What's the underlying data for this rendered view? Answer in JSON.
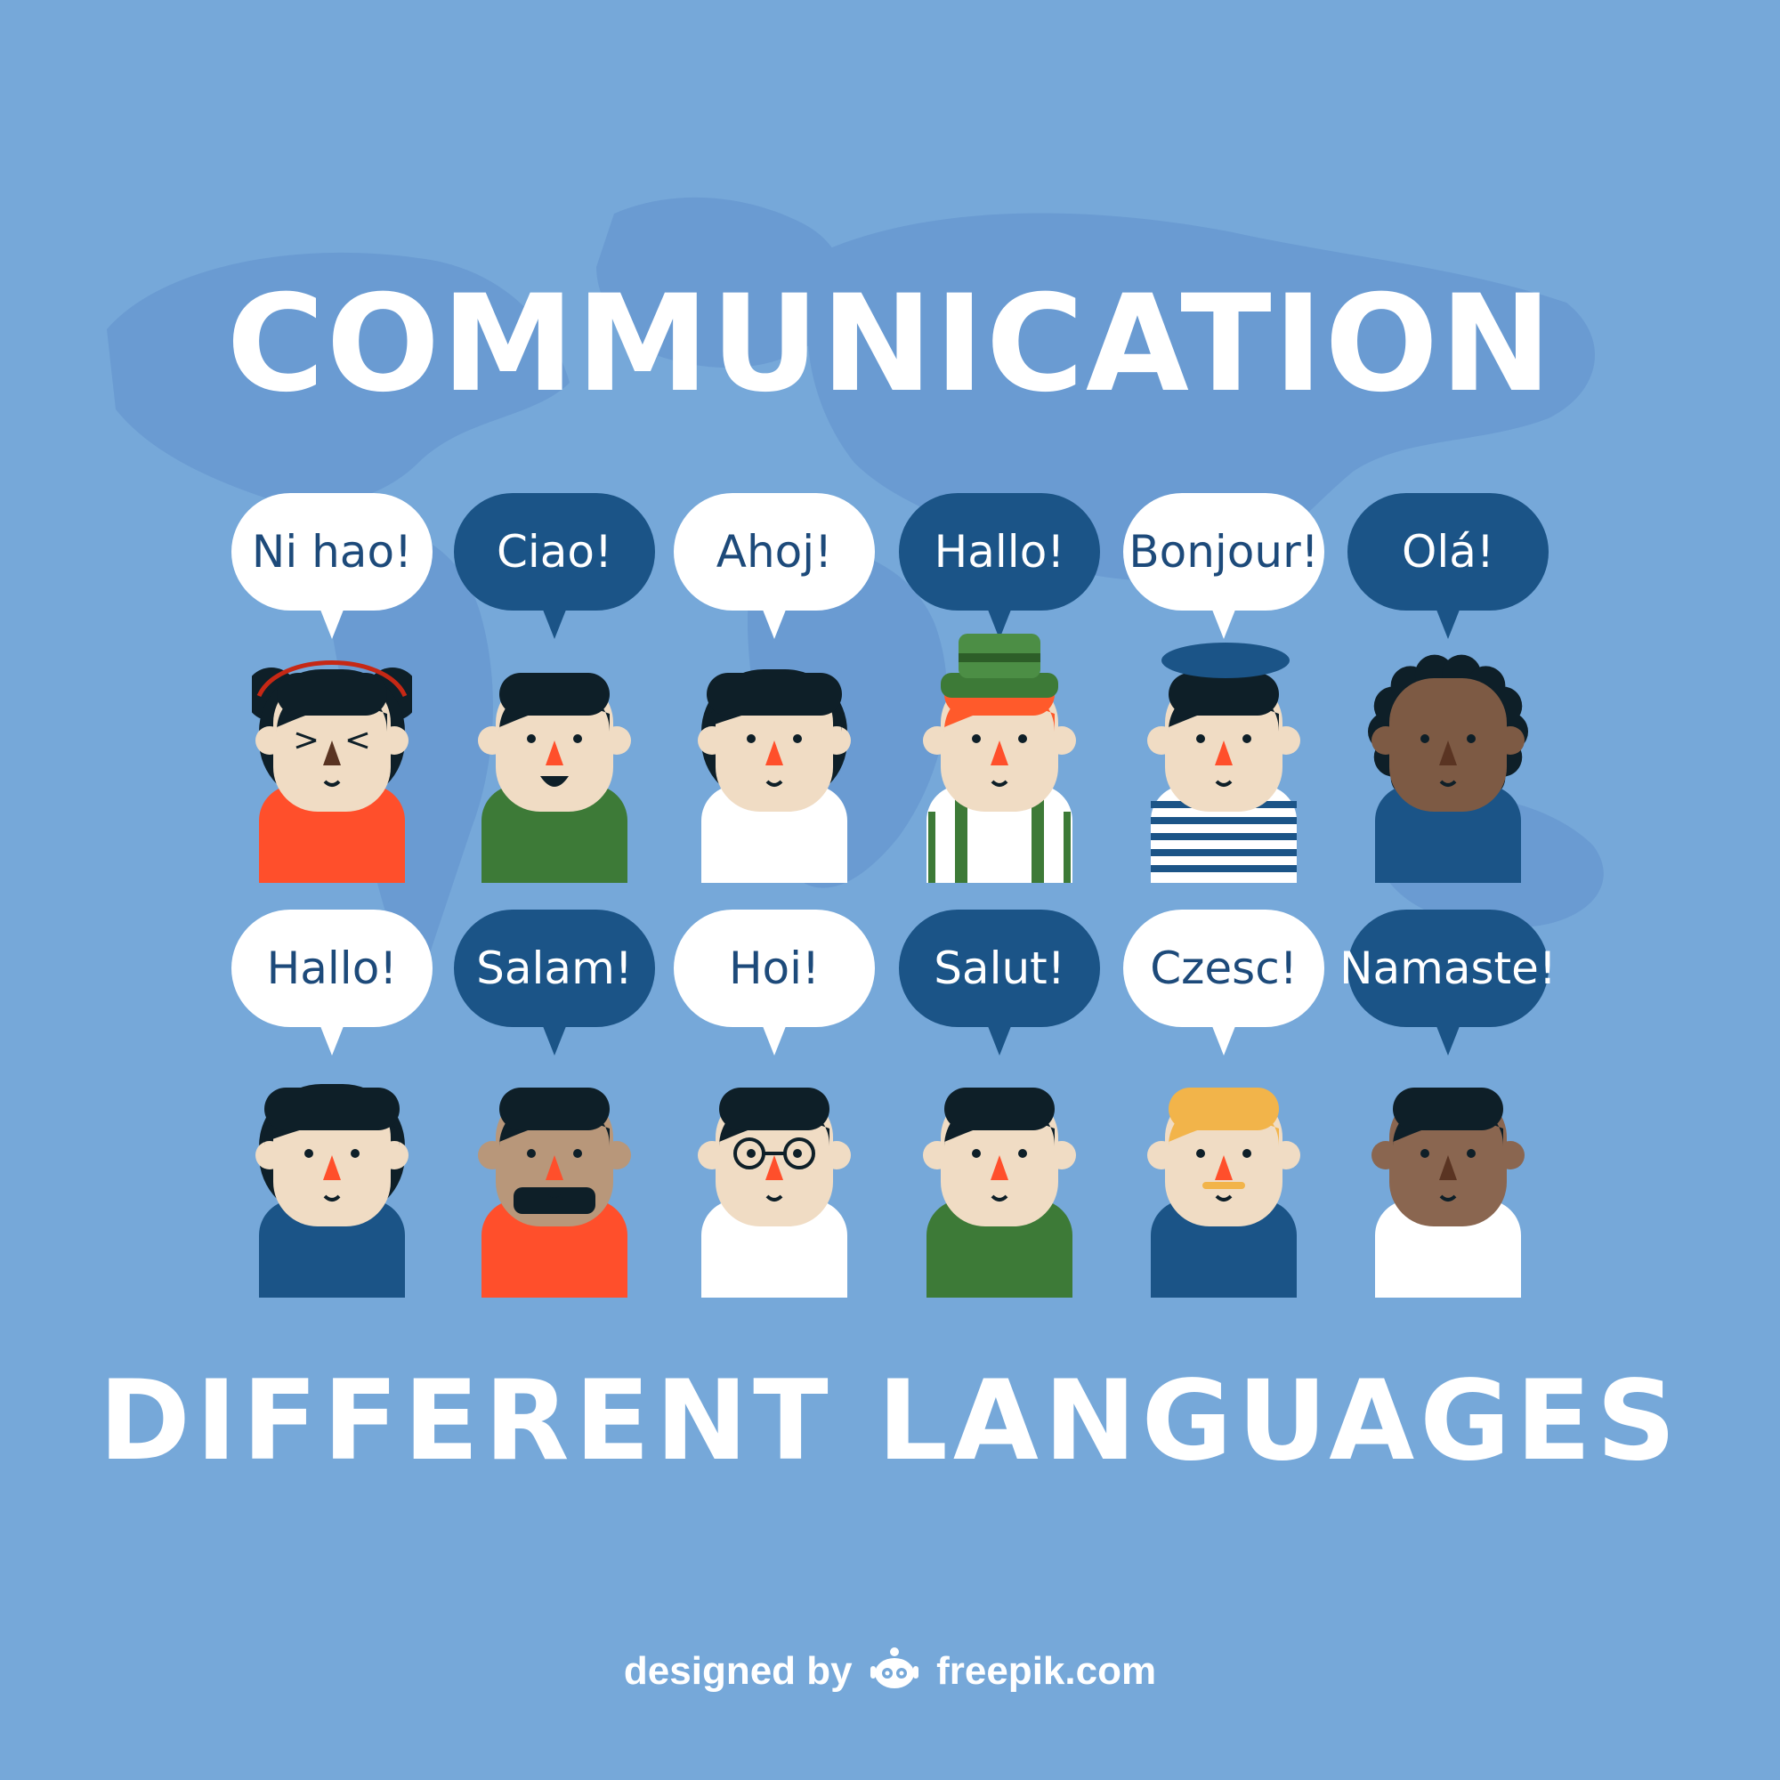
{
  "title": "COMMUNICATION",
  "subtitle": "DIFFERENT LANGUAGES",
  "colors": {
    "background": "#76a8d9",
    "map": "#6a9bd2",
    "bubble_light": "#ffffff",
    "bubble_dark": "#1b5487",
    "bubble_light_text": "#1d4a7a",
    "title_text": "#ffffff"
  },
  "greetings": [
    {
      "text": "Ni hao!",
      "style": "light"
    },
    {
      "text": "Ciao!",
      "style": "dark"
    },
    {
      "text": "Ahoj!",
      "style": "light"
    },
    {
      "text": "Hallo!",
      "style": "dark"
    },
    {
      "text": "Bonjour!",
      "style": "light"
    },
    {
      "text": "Olá!",
      "style": "dark"
    },
    {
      "text": "Hallo!",
      "style": "light"
    },
    {
      "text": "Salam!",
      "style": "dark"
    },
    {
      "text": "Hoi!",
      "style": "light"
    },
    {
      "text": "Salut!",
      "style": "dark"
    },
    {
      "text": "Czesc!",
      "style": "light"
    },
    {
      "text": "Namaste!",
      "style": "dark"
    }
  ],
  "people": [
    {
      "name": "person-buns-hair",
      "skin": "#f0dcc4",
      "shirt": "#ff4f2b",
      "hair": "#0e1f28"
    },
    {
      "name": "person-green-shirt",
      "skin": "#f0dcc4",
      "shirt": "#3d7a37",
      "hair": "#0e1f28"
    },
    {
      "name": "person-bob-hair",
      "skin": "#f0dcc4",
      "shirt": "#ffffff",
      "hair": "#0e1f28"
    },
    {
      "name": "person-tyrolean-hat",
      "skin": "#f0dcc4",
      "shirt": "#ffffff",
      "hair": "#ff5a2b"
    },
    {
      "name": "person-beret-stripes",
      "skin": "#f0dcc4",
      "shirt": "#ffffff",
      "hair": "#0e1f28"
    },
    {
      "name": "person-curly-hair",
      "skin": "#7d5a44",
      "shirt": "#1b5487",
      "hair": "#0e1f28"
    },
    {
      "name": "person-long-hair",
      "skin": "#f0dcc4",
      "shirt": "#1b5487",
      "hair": "#0e1f28"
    },
    {
      "name": "person-beard",
      "skin": "#b8977a",
      "shirt": "#ff4f2b",
      "hair": "#0e1f28"
    },
    {
      "name": "person-glasses",
      "skin": "#f0dcc4",
      "shirt": "#ffffff",
      "hair": "#0e1f28"
    },
    {
      "name": "person-quiff",
      "skin": "#f0dcc4",
      "shirt": "#3d7a37",
      "hair": "#0e1f28"
    },
    {
      "name": "person-blond-moustache",
      "skin": "#f0dcc4",
      "shirt": "#1b5487",
      "hair": "#f2b44a"
    },
    {
      "name": "person-short-hair",
      "skin": "#8a6650",
      "shirt": "#ffffff",
      "hair": "#0e1f28"
    }
  ],
  "credit": {
    "prefix": "designed by",
    "brand": "freepik.com",
    "logo_icon": "freepik-logo-icon"
  }
}
